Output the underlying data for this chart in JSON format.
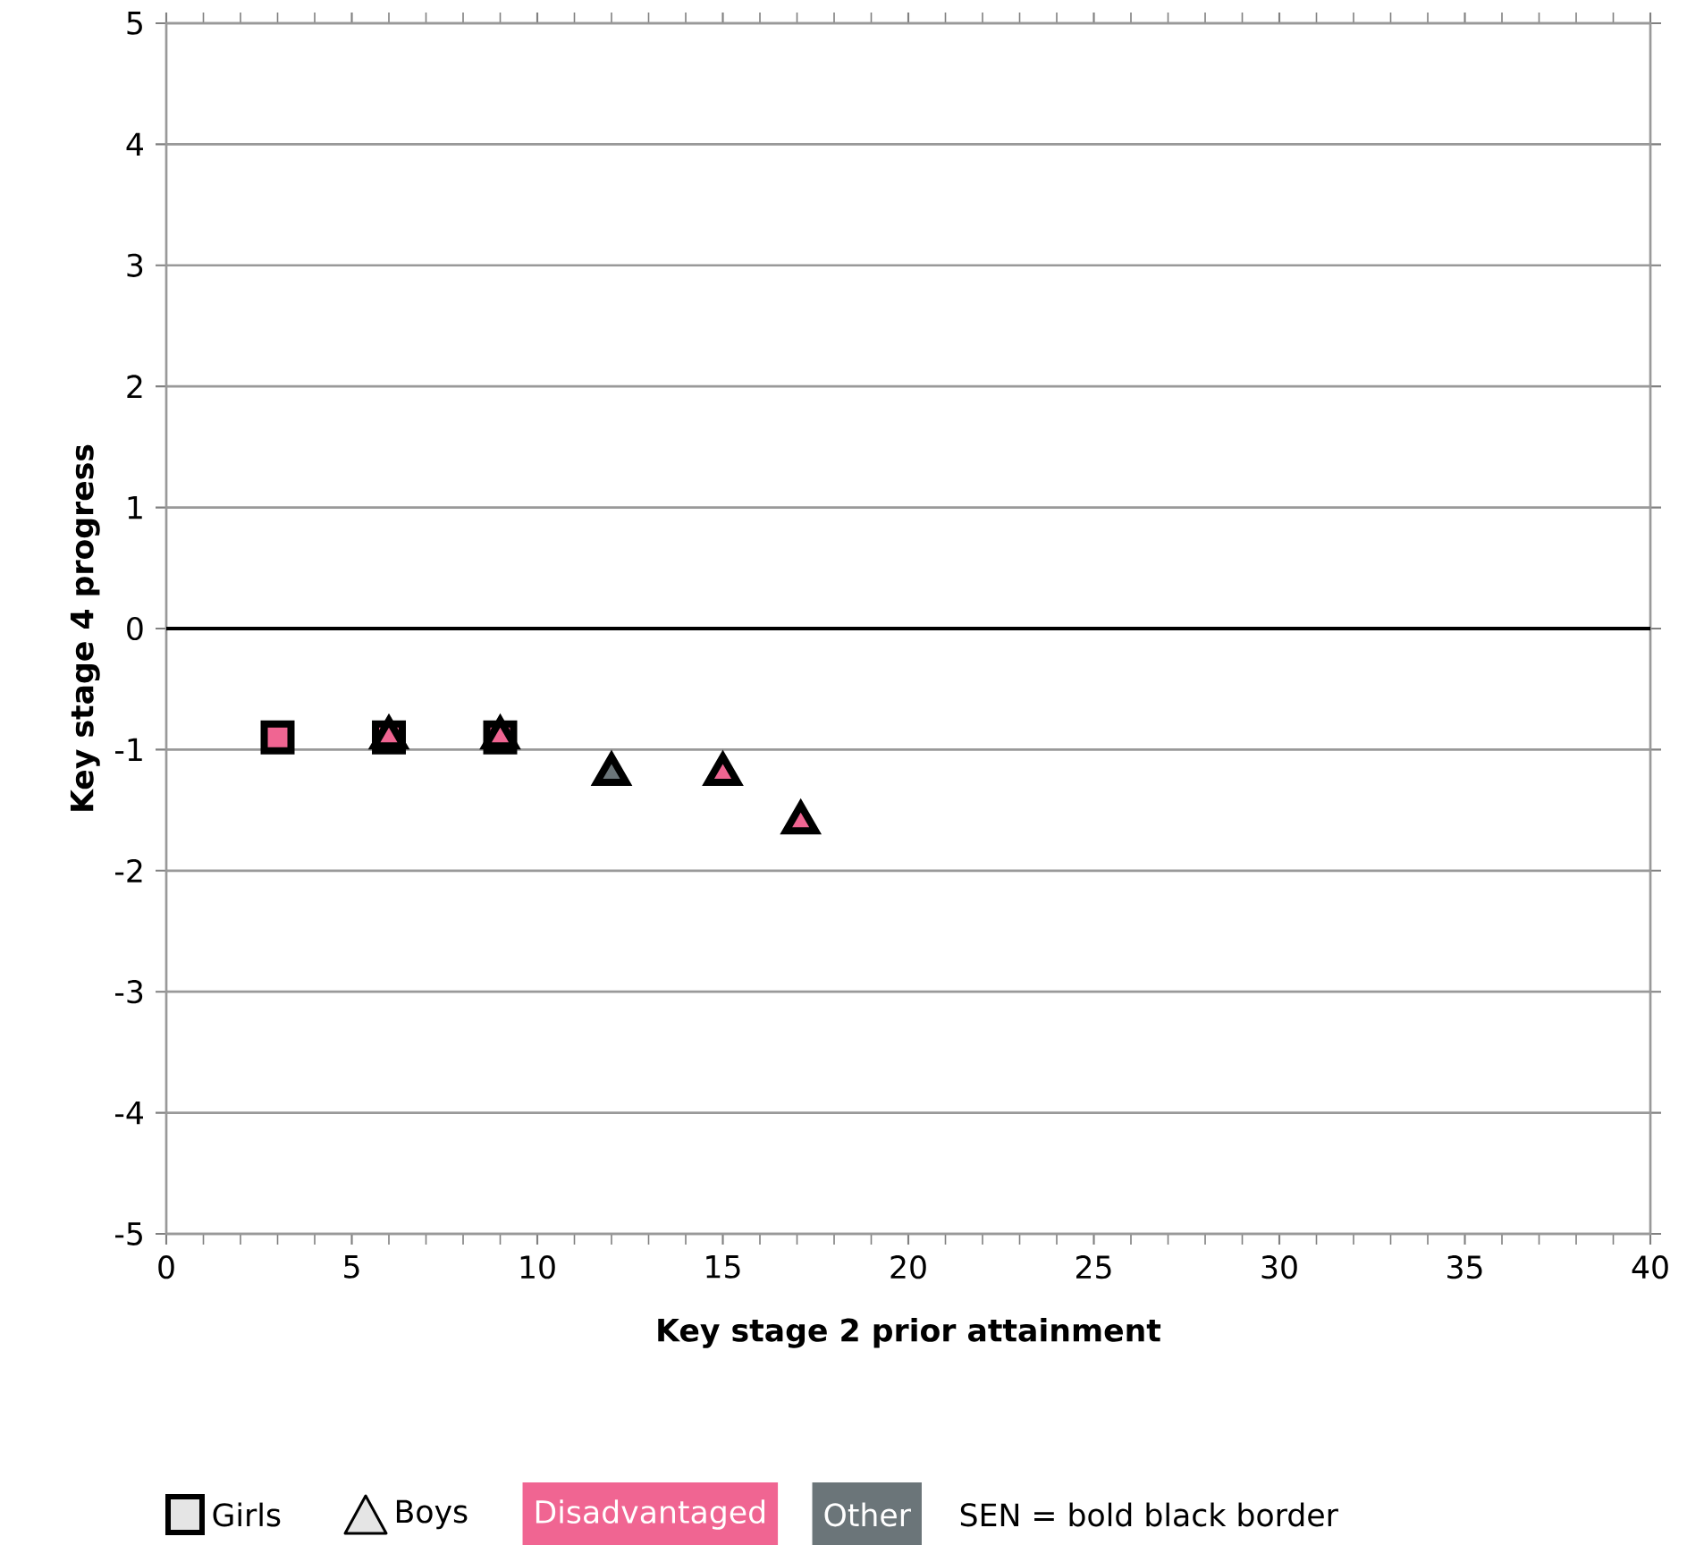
{
  "chart_data": {
    "type": "scatter",
    "xlabel": "Key stage 2 prior attainment",
    "ylabel": "Key stage 4 progress",
    "xlim": [
      0,
      40
    ],
    "ylim": [
      -5,
      5
    ],
    "xticks": [
      0,
      5,
      10,
      15,
      20,
      25,
      30,
      35,
      40
    ],
    "yticks": [
      -5,
      -4,
      -3,
      -2,
      -1,
      0,
      1,
      2,
      3,
      4,
      5
    ],
    "grid": "y",
    "ref_lines": [
      {
        "axis": "y",
        "value": 0,
        "color": "#000000"
      }
    ],
    "series": [
      {
        "x": [
          3,
          6,
          9
        ],
        "values": [
          -0.9,
          -0.9,
          -0.9
        ],
        "color": "#f06592",
        "marker": "square"
      },
      {
        "x": [
          15,
          17.1,
          6,
          9
        ],
        "values": [
          -1.2,
          -1.6,
          -0.9,
          -0.9
        ],
        "color": "#f06592",
        "marker": "triangle"
      },
      {
        "x": [
          12
        ],
        "values": [
          -1.2
        ],
        "color": "#6b7579",
        "marker": "triangle"
      }
    ],
    "annotations": [
      "Girls",
      "Boys",
      "Disadvantaged",
      "Other",
      "SEN = bold black border"
    ]
  }
}
